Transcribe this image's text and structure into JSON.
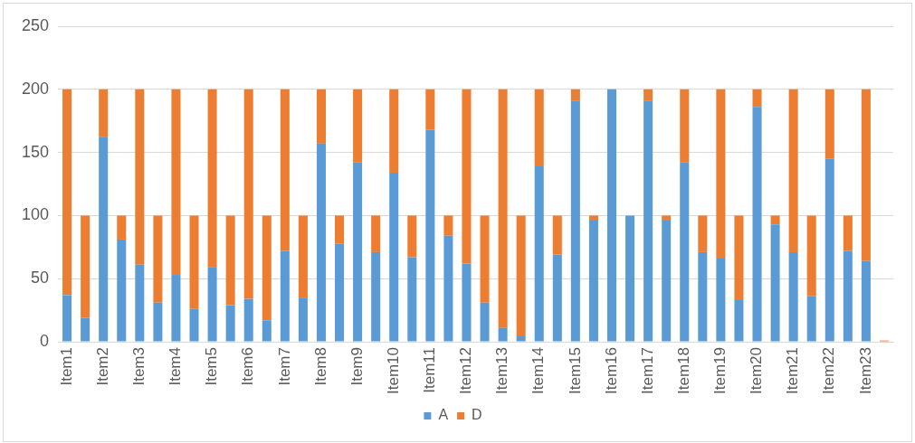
{
  "chart_data": {
    "type": "bar",
    "stacked": true,
    "categories": [
      "Item1",
      null,
      "Item2",
      null,
      "Item3",
      null,
      "Item4",
      null,
      "Item5",
      null,
      "Item6",
      null,
      "Item7",
      null,
      "Item8",
      null,
      "Item9",
      null,
      "Item10",
      null,
      "Item11",
      null,
      "Item12",
      null,
      "Item13",
      null,
      "Item14",
      null,
      "Item15",
      null,
      "Item16",
      null,
      "Item17",
      null,
      "Item18",
      null,
      "Item19",
      null,
      "Item20",
      null,
      "Item21",
      null,
      "Item22",
      null,
      "Item23",
      null
    ],
    "series": [
      {
        "name": "A",
        "color": "#5b9bd5",
        "values": [
          37,
          19,
          162,
          81,
          61,
          31,
          53,
          26,
          59,
          29,
          34,
          17,
          72,
          35,
          157,
          78,
          142,
          71,
          134,
          67,
          168,
          84,
          62,
          31,
          11,
          5,
          139,
          69,
          191,
          96,
          200,
          100,
          191,
          96,
          142,
          71,
          66,
          33,
          186,
          93,
          71,
          36,
          145,
          72,
          64,
          0
        ]
      },
      {
        "name": "D",
        "color": "#ed7d31",
        "values": [
          163,
          81,
          38,
          19,
          139,
          69,
          147,
          74,
          141,
          71,
          166,
          83,
          128,
          65,
          43,
          22,
          58,
          29,
          66,
          33,
          32,
          16,
          138,
          69,
          189,
          95,
          61,
          31,
          9,
          4,
          0,
          0,
          9,
          4,
          58,
          29,
          134,
          67,
          14,
          7,
          129,
          64,
          55,
          28,
          136,
          1
        ]
      }
    ],
    "ylim": [
      0,
      250
    ],
    "yticks": [
      0,
      50,
      100,
      150,
      200,
      250
    ],
    "grid": "y",
    "legend": "bottom"
  }
}
